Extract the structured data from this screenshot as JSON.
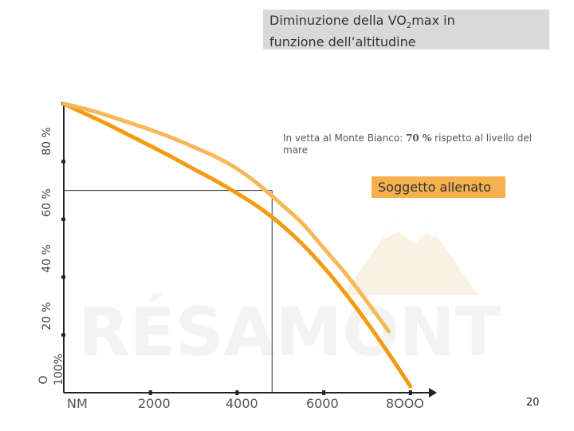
{
  "chart_data": {
    "type": "line",
    "title_main": "Diminuzione della VO",
    "title_sub": "2",
    "title_rest": "max in",
    "title_line2": "funzione dell’altitudine",
    "x_ticks": [
      "NM",
      "2000",
      "4000",
      "6000",
      "8OOO"
    ],
    "y_ticks": [
      "O",
      "100%",
      "20 %",
      "40 %",
      "60 %",
      "80 %"
    ],
    "xlim": [
      0,
      8500
    ],
    "series": [
      {
        "color": "#f39c12",
        "x": [
          0,
          500,
          1000,
          1500,
          2000,
          2500,
          3000,
          3500,
          4000,
          4500,
          5000,
          5500,
          6000,
          6500,
          7000,
          7500,
          8000
        ],
        "y": [
          100,
          96.5,
          93,
          89.2,
          85.4,
          81.5,
          77.4,
          73.4,
          69,
          64.2,
          58.4,
          51.5,
          43.4,
          34.3,
          24.3,
          13.5,
          2.2
        ]
      },
      {
        "name": "Soggetto allenato",
        "color": "#f7b85a",
        "x": [
          0,
          500,
          1000,
          1500,
          2000,
          2500,
          3000,
          3500,
          4000,
          4500,
          5000,
          5500,
          6000,
          6500,
          7000,
          7500
        ],
        "y": [
          100,
          98.2,
          96,
          93.5,
          91,
          88.2,
          85,
          81.7,
          77.5,
          72,
          65.5,
          58.7,
          50,
          41.3,
          31.5,
          21.2
        ]
      }
    ],
    "marker_point": {
      "x": 4807,
      "y": 70
    },
    "annotation": {
      "prefix": "In vetta al Monte Bianco: ",
      "value": "70 %",
      "suffix": " rispetto al livello del mare"
    },
    "legend_label": "Soggetto allenato"
  },
  "watermark": {
    "text": "RÉSAMONT"
  },
  "page_number": "20"
}
